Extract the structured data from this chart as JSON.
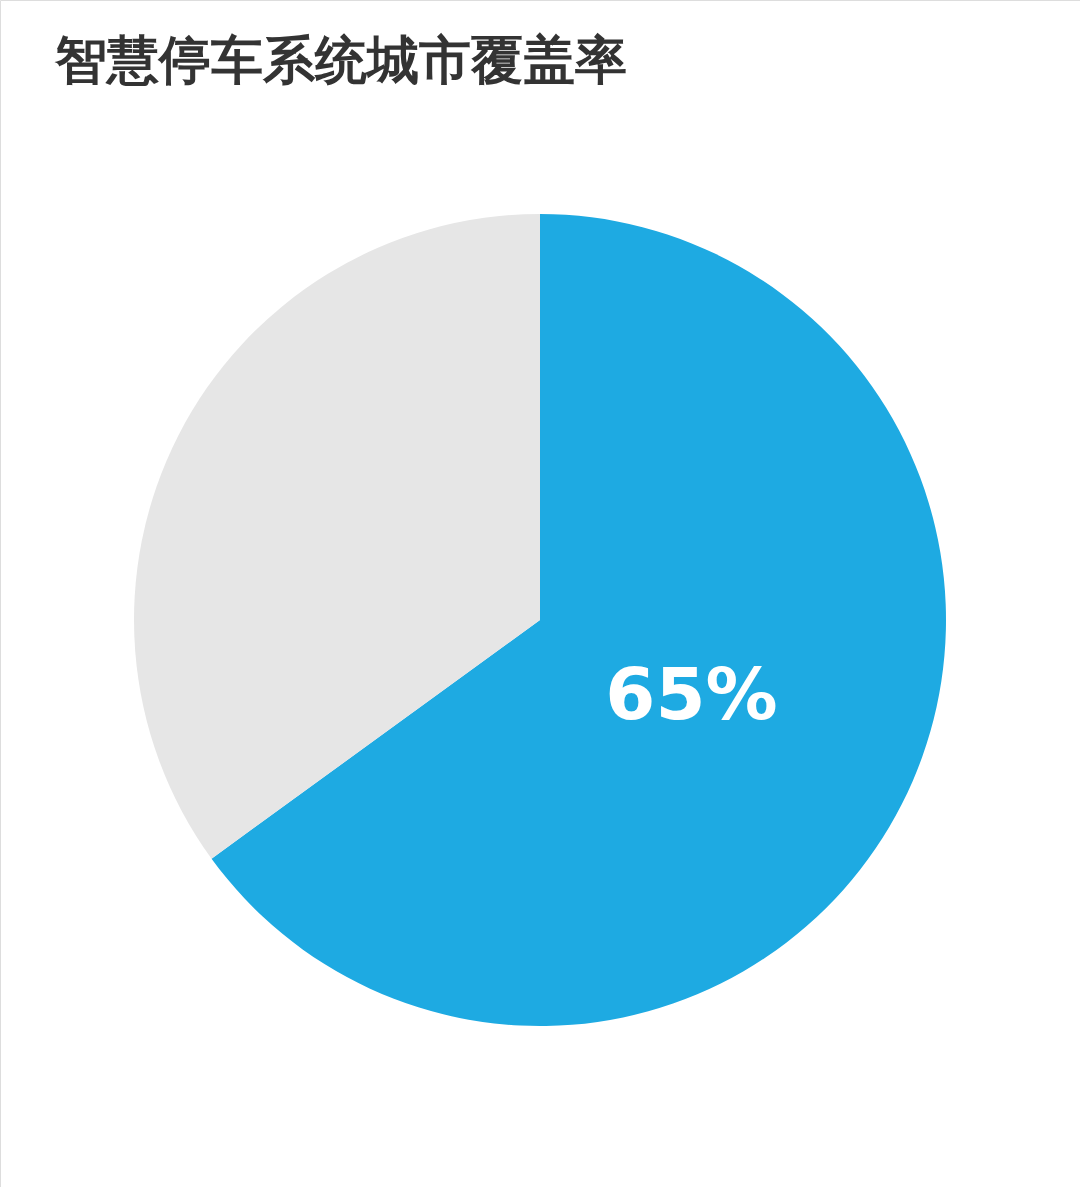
{
  "chart_data": {
    "type": "pie",
    "title": "智慧停车系统城市覆盖率",
    "categories": [
      null,
      null
    ],
    "values": [
      65,
      35
    ],
    "colors": [
      "#1eaae2",
      "#e6e6e6"
    ],
    "value_labels": [
      "65%",
      null
    ]
  }
}
